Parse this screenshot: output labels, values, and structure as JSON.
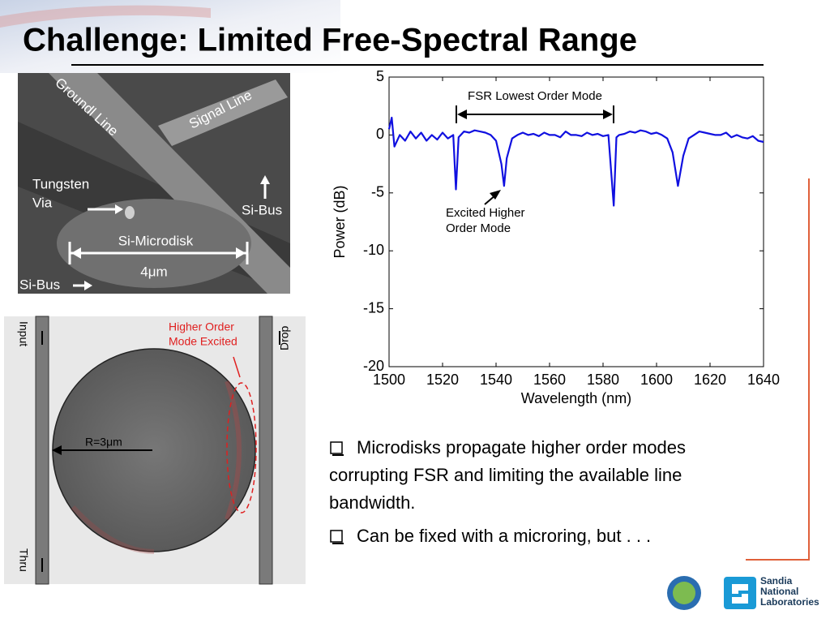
{
  "title": "Challenge: Limited Free-Spectral Range",
  "sem_image": {
    "labels": [
      "Groundl Line",
      "Signal Line",
      "Tungsten",
      "Via",
      "Si-Bus",
      "Si-Microdisk",
      "4μm",
      "Si-Bus"
    ]
  },
  "simulation_image": {
    "labels": [
      "Input",
      "Drop",
      "Higher Order",
      "Mode Excited",
      "R=3μm",
      "Thru"
    ]
  },
  "chart_data": {
    "type": "line",
    "xlabel": "Wavelength (nm)",
    "ylabel": "Power (dB)",
    "color": "#1010e0",
    "xlim": [
      1500,
      1640
    ],
    "ylim": [
      -20,
      5
    ],
    "xticks": [
      1500,
      1520,
      1540,
      1560,
      1580,
      1600,
      1620,
      1640
    ],
    "yticks": [
      5,
      0,
      -5,
      -10,
      -15,
      -20
    ],
    "annotations": [
      "FSR Lowest Order Mode",
      "Excited Higher",
      "Order Mode"
    ],
    "x": [
      1500,
      1501,
      1502,
      1504,
      1506,
      1508,
      1510,
      1512,
      1514,
      1516,
      1518,
      1520,
      1522,
      1524,
      1525,
      1526,
      1528,
      1530,
      1532,
      1534,
      1536,
      1538,
      1540,
      1542,
      1543,
      1544,
      1546,
      1548,
      1550,
      1552,
      1554,
      1556,
      1558,
      1560,
      1562,
      1564,
      1566,
      1568,
      1570,
      1572,
      1574,
      1576,
      1578,
      1580,
      1582,
      1584,
      1585,
      1586,
      1588,
      1590,
      1592,
      1594,
      1596,
      1598,
      1600,
      1602,
      1604,
      1606,
      1608,
      1610,
      1612,
      1614,
      1616,
      1618,
      1620,
      1622,
      1624,
      1626,
      1628,
      1630,
      1632,
      1634,
      1636,
      1638,
      1640
    ],
    "values": [
      0.5,
      1.5,
      -1,
      0,
      -0.5,
      0.3,
      -0.3,
      0.2,
      -0.5,
      0,
      -0.4,
      0.2,
      -0.3,
      0,
      -4.7,
      -0.2,
      0.3,
      0.2,
      0.4,
      0.3,
      0.2,
      0,
      -0.5,
      -2.5,
      -4.4,
      -2,
      -0.3,
      0,
      0.2,
      0,
      0.1,
      -0.1,
      0.2,
      0,
      0,
      -0.2,
      0.3,
      0,
      0,
      -0.1,
      0.2,
      0,
      0.1,
      -0.1,
      0,
      -6.1,
      -0.2,
      0,
      0.1,
      0.3,
      0.2,
      0.4,
      0.3,
      0.1,
      0.2,
      0,
      -0.3,
      -1.5,
      -4.4,
      -1.8,
      -0.3,
      0,
      0.3,
      0.2,
      0.1,
      0,
      0,
      0.2,
      -0.2,
      0,
      -0.2,
      -0.3,
      -0.1,
      -0.5,
      -0.6
    ]
  },
  "bullets": [
    [
      "Microdisks propagate higher order modes",
      "corrupting FSR and limiting the available line",
      "bandwidth."
    ],
    [
      "Can be fixed with a microring, but . . ."
    ]
  ],
  "logo": [
    "Sandia",
    "National",
    "Laboratories"
  ]
}
